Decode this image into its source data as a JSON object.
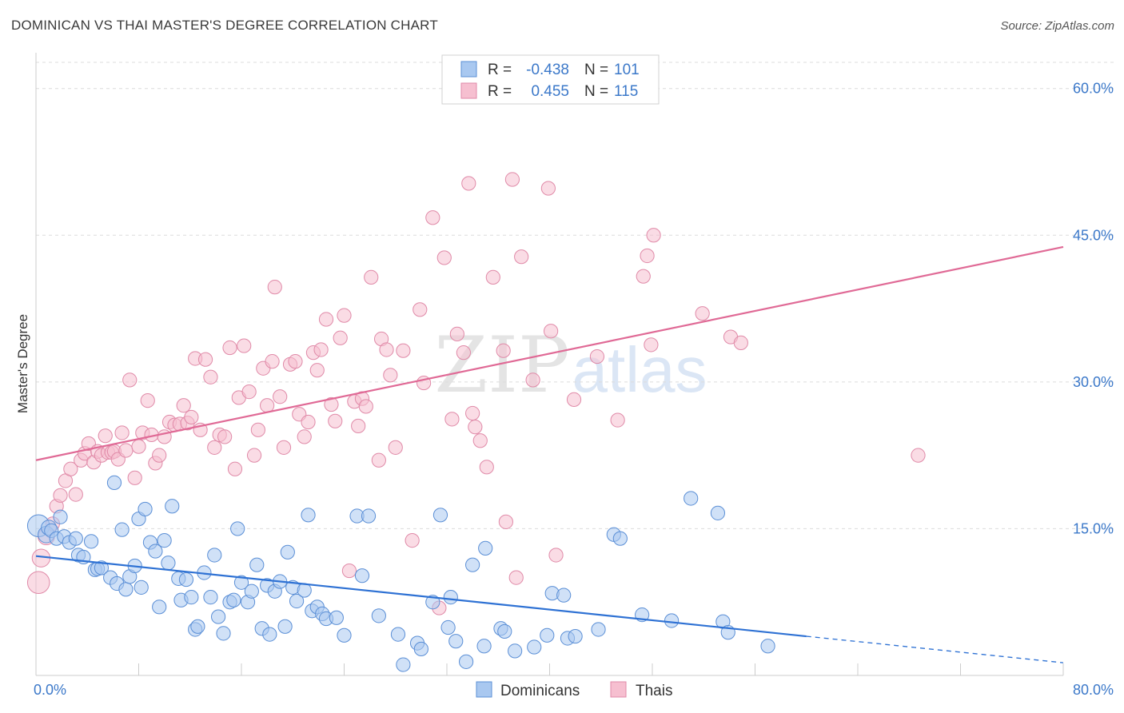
{
  "title": "DOMINICAN VS THAI MASTER'S DEGREE CORRELATION CHART",
  "source": "Source: ZipAtlas.com",
  "watermark": {
    "zip": "ZIP",
    "atlas": "atlas"
  },
  "colors": {
    "blue_fill": "#a9c8f0",
    "blue_stroke": "#5b8fd6",
    "blue_line": "#2f72d4",
    "pink_fill": "#f6bfd0",
    "pink_stroke": "#e08aa8",
    "pink_line": "#e06a96",
    "tick": "#3b78c9",
    "grid": "#dcdcdc"
  },
  "legend": {
    "rows": [
      {
        "r_label": "R =",
        "r_value": "-0.438",
        "n_label": "N =",
        "n_value": "101"
      },
      {
        "r_label": "R =",
        "r_value": "0.455",
        "n_label": "N =",
        "n_value": "115"
      }
    ]
  },
  "bottom_legend": [
    "Dominicans",
    "Thais"
  ],
  "chart_data": {
    "type": "scatter",
    "title": "DOMINICAN VS THAI MASTER'S DEGREE CORRELATION CHART",
    "xlabel": "",
    "ylabel": "Master's Degree",
    "xlim": [
      0,
      80
    ],
    "ylim": [
      0,
      63
    ],
    "x_tick_labels": [
      "0.0%",
      "80.0%"
    ],
    "y_ticks": [
      15,
      30,
      45,
      60
    ],
    "y_tick_labels": [
      "15.0%",
      "30.0%",
      "45.0%",
      "60.0%"
    ],
    "grid": "horizontal dashed",
    "legend_placement": "top-center",
    "series": [
      {
        "name": "Dominicans",
        "r": -0.438,
        "n": 101,
        "trend": {
          "x0": 0,
          "y0": 12.2,
          "x1": 60,
          "y1": 4.0,
          "dashed_to_x": 80,
          "dashed_to_y": 1.3
        },
        "points": [
          [
            0.2,
            15.3,
            1.6
          ],
          [
            0.8,
            14.4,
            1.2
          ],
          [
            1.0,
            15.1,
            1.1
          ],
          [
            1.2,
            14.8,
            1.0
          ],
          [
            1.6,
            14.0,
            1.0
          ],
          [
            1.9,
            16.2,
            1.0
          ],
          [
            2.2,
            14.2,
            1.0
          ],
          [
            2.6,
            13.6,
            1.0
          ],
          [
            3.1,
            14.0,
            1.0
          ],
          [
            3.3,
            12.3,
            1.0
          ],
          [
            3.7,
            12.1,
            1.0
          ],
          [
            4.3,
            13.7,
            1.0
          ],
          [
            4.6,
            10.8,
            1.0
          ],
          [
            4.8,
            10.9,
            1.0
          ],
          [
            5.1,
            11.0,
            1.0
          ],
          [
            5.8,
            10.0,
            1.0
          ],
          [
            6.1,
            19.7,
            1.0
          ],
          [
            6.3,
            9.4,
            1.0
          ],
          [
            6.7,
            14.9,
            1.0
          ],
          [
            7.0,
            8.8,
            1.0
          ],
          [
            7.3,
            10.1,
            1.0
          ],
          [
            7.7,
            11.2,
            1.0
          ],
          [
            8.0,
            16.0,
            1.0
          ],
          [
            8.2,
            9.0,
            1.0
          ],
          [
            8.5,
            17.0,
            1.0
          ],
          [
            8.9,
            13.6,
            1.0
          ],
          [
            9.3,
            12.7,
            1.0
          ],
          [
            9.6,
            7.0,
            1.0
          ],
          [
            10.0,
            13.8,
            1.0
          ],
          [
            10.3,
            11.5,
            1.0
          ],
          [
            10.6,
            17.3,
            1.0
          ],
          [
            11.1,
            9.9,
            1.0
          ],
          [
            11.3,
            7.7,
            1.0
          ],
          [
            11.7,
            9.8,
            1.0
          ],
          [
            12.1,
            8.0,
            1.0
          ],
          [
            12.4,
            4.7,
            1.0
          ],
          [
            12.6,
            5.0,
            1.0
          ],
          [
            13.1,
            10.5,
            1.0
          ],
          [
            13.6,
            8.0,
            1.0
          ],
          [
            13.9,
            12.3,
            1.0
          ],
          [
            14.2,
            6.0,
            1.0
          ],
          [
            14.6,
            4.3,
            1.0
          ],
          [
            15.1,
            7.5,
            1.0
          ],
          [
            15.4,
            7.7,
            1.0
          ],
          [
            15.7,
            15.0,
            1.0
          ],
          [
            16.0,
            9.5,
            1.0
          ],
          [
            16.5,
            7.5,
            1.0
          ],
          [
            16.8,
            8.6,
            1.0
          ],
          [
            17.2,
            11.3,
            1.0
          ],
          [
            17.6,
            4.8,
            1.0
          ],
          [
            18.0,
            9.2,
            1.0
          ],
          [
            18.2,
            4.2,
            1.0
          ],
          [
            18.6,
            8.6,
            1.0
          ],
          [
            19.0,
            9.6,
            1.0
          ],
          [
            19.4,
            5.0,
            1.0
          ],
          [
            19.6,
            12.6,
            1.0
          ],
          [
            20.0,
            9.0,
            1.0
          ],
          [
            20.3,
            7.6,
            1.0
          ],
          [
            20.9,
            8.7,
            1.0
          ],
          [
            21.2,
            16.4,
            1.0
          ],
          [
            21.5,
            6.6,
            1.0
          ],
          [
            21.9,
            7.0,
            1.0
          ],
          [
            22.3,
            6.3,
            1.0
          ],
          [
            22.6,
            5.8,
            1.0
          ],
          [
            23.4,
            5.9,
            1.0
          ],
          [
            24.0,
            4.1,
            1.0
          ],
          [
            25.0,
            16.3,
            1.0
          ],
          [
            25.4,
            10.2,
            1.0
          ],
          [
            25.9,
            16.3,
            1.0
          ],
          [
            26.7,
            6.1,
            1.0
          ],
          [
            28.2,
            4.2,
            1.0
          ],
          [
            28.6,
            1.1,
            1.0
          ],
          [
            29.7,
            3.3,
            1.0
          ],
          [
            30.0,
            2.7,
            1.0
          ],
          [
            30.9,
            7.5,
            1.0
          ],
          [
            31.5,
            16.4,
            1.0
          ],
          [
            32.1,
            4.9,
            1.0
          ],
          [
            32.3,
            8.0,
            1.0
          ],
          [
            32.7,
            3.5,
            1.0
          ],
          [
            33.5,
            1.4,
            1.0
          ],
          [
            34.0,
            11.3,
            1.0
          ],
          [
            35.0,
            13.0,
            1.0
          ],
          [
            34.9,
            3.0,
            1.0
          ],
          [
            36.2,
            4.8,
            1.0
          ],
          [
            36.5,
            4.5,
            1.0
          ],
          [
            37.3,
            2.5,
            1.0
          ],
          [
            38.8,
            2.9,
            1.0
          ],
          [
            39.8,
            4.1,
            1.0
          ],
          [
            40.2,
            8.4,
            1.0
          ],
          [
            41.1,
            8.2,
            1.0
          ],
          [
            41.4,
            3.8,
            1.0
          ],
          [
            42.0,
            4.0,
            1.0
          ],
          [
            43.8,
            4.7,
            1.0
          ],
          [
            45.0,
            14.4,
            1.0
          ],
          [
            45.5,
            14.0,
            1.0
          ],
          [
            47.2,
            6.2,
            1.0
          ],
          [
            49.5,
            5.6,
            1.0
          ],
          [
            51.0,
            18.1,
            1.0
          ],
          [
            53.1,
            16.6,
            1.0
          ],
          [
            53.5,
            5.5,
            1.0
          ],
          [
            53.9,
            4.4,
            1.0
          ],
          [
            57.0,
            3.0,
            1.0
          ]
        ]
      },
      {
        "name": "Thais",
        "r": 0.455,
        "n": 115,
        "trend": {
          "x0": 0,
          "y0": 22.0,
          "x1": 80,
          "y1": 43.8
        },
        "points": [
          [
            0.2,
            9.5,
            1.6
          ],
          [
            0.4,
            12.0,
            1.3
          ],
          [
            0.8,
            14.2,
            1.2
          ],
          [
            1.3,
            15.5,
            1.0
          ],
          [
            1.6,
            17.3,
            1.0
          ],
          [
            1.9,
            18.4,
            1.0
          ],
          [
            2.3,
            19.9,
            1.0
          ],
          [
            2.7,
            21.1,
            1.0
          ],
          [
            3.1,
            18.5,
            1.0
          ],
          [
            3.5,
            22.0,
            1.0
          ],
          [
            3.8,
            22.7,
            1.0
          ],
          [
            4.1,
            23.7,
            1.0
          ],
          [
            4.5,
            21.8,
            1.0
          ],
          [
            4.8,
            22.9,
            1.0
          ],
          [
            5.1,
            22.5,
            1.0
          ],
          [
            5.4,
            24.5,
            1.0
          ],
          [
            5.6,
            22.8,
            1.0
          ],
          [
            5.9,
            22.8,
            1.0
          ],
          [
            6.1,
            22.9,
            1.0
          ],
          [
            6.4,
            22.1,
            1.0
          ],
          [
            6.7,
            24.8,
            1.0
          ],
          [
            7.0,
            23.0,
            1.0
          ],
          [
            7.3,
            30.2,
            1.0
          ],
          [
            7.7,
            20.2,
            1.0
          ],
          [
            8.0,
            23.4,
            1.0
          ],
          [
            8.3,
            24.8,
            1.0
          ],
          [
            8.7,
            28.1,
            1.0
          ],
          [
            9.0,
            24.6,
            1.0
          ],
          [
            9.3,
            21.7,
            1.0
          ],
          [
            9.6,
            22.5,
            1.0
          ],
          [
            10.0,
            24.4,
            1.0
          ],
          [
            10.4,
            25.9,
            1.0
          ],
          [
            10.8,
            25.6,
            1.0
          ],
          [
            11.2,
            25.7,
            1.0
          ],
          [
            11.5,
            27.6,
            1.0
          ],
          [
            11.8,
            25.8,
            1.0
          ],
          [
            12.1,
            26.4,
            1.0
          ],
          [
            12.4,
            32.4,
            1.0
          ],
          [
            12.8,
            25.1,
            1.0
          ],
          [
            13.2,
            32.3,
            1.0
          ],
          [
            13.6,
            30.5,
            1.0
          ],
          [
            13.9,
            23.3,
            1.0
          ],
          [
            14.3,
            24.6,
            1.0
          ],
          [
            14.7,
            24.4,
            1.0
          ],
          [
            15.1,
            33.5,
            1.0
          ],
          [
            15.5,
            21.1,
            1.0
          ],
          [
            15.8,
            28.4,
            1.0
          ],
          [
            16.2,
            33.7,
            1.0
          ],
          [
            16.6,
            29.0,
            1.0
          ],
          [
            17.0,
            22.5,
            1.0
          ],
          [
            17.3,
            25.1,
            1.0
          ],
          [
            17.7,
            31.4,
            1.0
          ],
          [
            18.0,
            27.6,
            1.0
          ],
          [
            18.4,
            32.1,
            1.0
          ],
          [
            18.6,
            39.7,
            1.0
          ],
          [
            19.0,
            28.5,
            1.0
          ],
          [
            19.3,
            23.3,
            1.0
          ],
          [
            19.8,
            31.8,
            1.0
          ],
          [
            20.2,
            32.1,
            1.0
          ],
          [
            20.5,
            26.7,
            1.0
          ],
          [
            20.9,
            24.4,
            1.0
          ],
          [
            21.2,
            25.9,
            1.0
          ],
          [
            21.6,
            33.0,
            1.0
          ],
          [
            21.9,
            31.2,
            1.0
          ],
          [
            22.2,
            33.3,
            1.0
          ],
          [
            22.6,
            36.4,
            1.0
          ],
          [
            23.0,
            27.7,
            1.0
          ],
          [
            23.3,
            26.0,
            1.0
          ],
          [
            23.7,
            34.5,
            1.0
          ],
          [
            24.0,
            36.8,
            1.0
          ],
          [
            24.4,
            10.7,
            1.0
          ],
          [
            24.8,
            28.0,
            1.0
          ],
          [
            25.1,
            25.5,
            1.0
          ],
          [
            25.4,
            28.3,
            1.0
          ],
          [
            25.7,
            27.5,
            1.0
          ],
          [
            26.1,
            40.7,
            1.0
          ],
          [
            26.7,
            22.0,
            1.0
          ],
          [
            26.9,
            34.4,
            1.0
          ],
          [
            27.3,
            33.3,
            1.0
          ],
          [
            27.6,
            30.7,
            1.0
          ],
          [
            28.0,
            23.3,
            1.0
          ],
          [
            28.6,
            33.2,
            1.0
          ],
          [
            29.3,
            13.8,
            1.0
          ],
          [
            29.9,
            37.4,
            1.0
          ],
          [
            30.2,
            29.9,
            1.0
          ],
          [
            30.9,
            46.8,
            1.0
          ],
          [
            31.4,
            6.9,
            1.0
          ],
          [
            31.8,
            42.7,
            1.0
          ],
          [
            32.4,
            26.2,
            1.0
          ],
          [
            32.8,
            34.9,
            1.0
          ],
          [
            33.3,
            33.0,
            1.0
          ],
          [
            33.7,
            50.3,
            1.0
          ],
          [
            34.0,
            26.8,
            1.0
          ],
          [
            34.2,
            25.4,
            1.0
          ],
          [
            34.6,
            24.0,
            1.0
          ],
          [
            35.1,
            21.3,
            1.0
          ],
          [
            35.6,
            40.7,
            1.0
          ],
          [
            36.4,
            33.2,
            1.0
          ],
          [
            36.6,
            15.7,
            1.0
          ],
          [
            37.1,
            50.7,
            1.0
          ],
          [
            37.4,
            10.0,
            1.0
          ],
          [
            37.8,
            42.8,
            1.0
          ],
          [
            38.7,
            30.2,
            1.0
          ],
          [
            39.9,
            49.8,
            1.0
          ],
          [
            40.1,
            35.2,
            1.0
          ],
          [
            40.5,
            12.3,
            1.0
          ],
          [
            41.9,
            28.2,
            1.0
          ],
          [
            43.7,
            32.6,
            1.0
          ],
          [
            45.3,
            26.1,
            1.0
          ],
          [
            47.3,
            40.8,
            1.0
          ],
          [
            47.6,
            42.9,
            1.0
          ],
          [
            47.9,
            33.8,
            1.0
          ],
          [
            48.1,
            45.0,
            1.0
          ],
          [
            51.9,
            37.0,
            1.0
          ],
          [
            54.1,
            34.6,
            1.0
          ],
          [
            54.9,
            34.0,
            1.0
          ],
          [
            68.7,
            22.5,
            1.0
          ]
        ]
      }
    ]
  }
}
